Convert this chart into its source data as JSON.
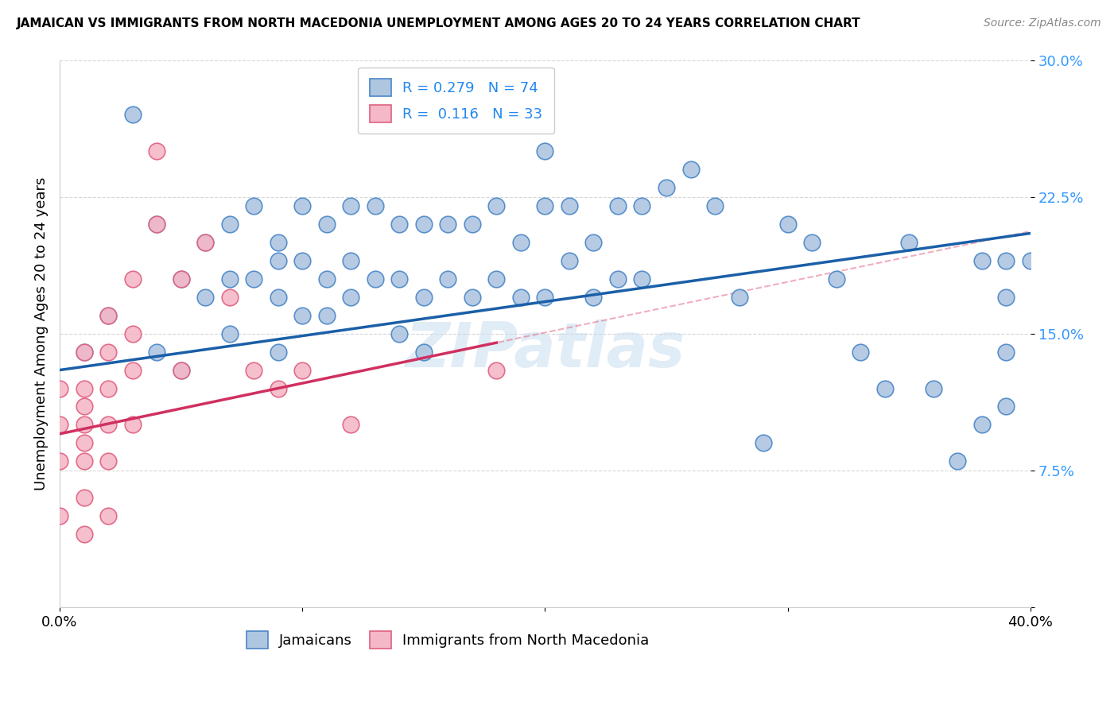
{
  "title": "JAMAICAN VS IMMIGRANTS FROM NORTH MACEDONIA UNEMPLOYMENT AMONG AGES 20 TO 24 YEARS CORRELATION CHART",
  "source": "Source: ZipAtlas.com",
  "ylabel": "Unemployment Among Ages 20 to 24 years",
  "xlim": [
    0.0,
    0.4
  ],
  "ylim": [
    0.0,
    0.3
  ],
  "xticks": [
    0.0,
    0.1,
    0.2,
    0.3,
    0.4
  ],
  "xticklabels": [
    "0.0%",
    "",
    "",
    "",
    "40.0%"
  ],
  "yticks": [
    0.0,
    0.075,
    0.15,
    0.225,
    0.3
  ],
  "yticklabels": [
    "",
    "7.5%",
    "15.0%",
    "22.5%",
    "30.0%"
  ],
  "blue_R": 0.279,
  "blue_N": 74,
  "pink_R": 0.116,
  "pink_N": 33,
  "blue_color": "#aec6e0",
  "blue_edge_color": "#4a86c8",
  "blue_line_color": "#1a5fa8",
  "pink_color": "#f4b8c8",
  "pink_edge_color": "#e06080",
  "pink_line_color": "#d03060",
  "blue_scatter_x": [
    0.01,
    0.02,
    0.03,
    0.04,
    0.04,
    0.05,
    0.05,
    0.06,
    0.06,
    0.07,
    0.07,
    0.07,
    0.08,
    0.08,
    0.09,
    0.09,
    0.09,
    0.09,
    0.1,
    0.1,
    0.1,
    0.11,
    0.11,
    0.11,
    0.12,
    0.12,
    0.12,
    0.13,
    0.13,
    0.14,
    0.14,
    0.14,
    0.15,
    0.15,
    0.15,
    0.16,
    0.16,
    0.17,
    0.17,
    0.18,
    0.18,
    0.19,
    0.19,
    0.2,
    0.2,
    0.2,
    0.21,
    0.21,
    0.22,
    0.22,
    0.23,
    0.23,
    0.24,
    0.24,
    0.25,
    0.26,
    0.27,
    0.28,
    0.29,
    0.3,
    0.31,
    0.32,
    0.33,
    0.34,
    0.35,
    0.36,
    0.37,
    0.38,
    0.38,
    0.39,
    0.39,
    0.39,
    0.39,
    0.4
  ],
  "blue_scatter_y": [
    0.14,
    0.16,
    0.27,
    0.21,
    0.14,
    0.18,
    0.13,
    0.2,
    0.17,
    0.21,
    0.18,
    0.15,
    0.22,
    0.18,
    0.2,
    0.19,
    0.17,
    0.14,
    0.22,
    0.19,
    0.16,
    0.21,
    0.18,
    0.16,
    0.22,
    0.19,
    0.17,
    0.22,
    0.18,
    0.21,
    0.18,
    0.15,
    0.21,
    0.17,
    0.14,
    0.21,
    0.18,
    0.21,
    0.17,
    0.22,
    0.18,
    0.2,
    0.17,
    0.25,
    0.22,
    0.17,
    0.22,
    0.19,
    0.2,
    0.17,
    0.22,
    0.18,
    0.22,
    0.18,
    0.23,
    0.24,
    0.22,
    0.17,
    0.09,
    0.21,
    0.2,
    0.18,
    0.14,
    0.12,
    0.2,
    0.12,
    0.08,
    0.1,
    0.19,
    0.19,
    0.17,
    0.14,
    0.11,
    0.19
  ],
  "pink_scatter_x": [
    0.0,
    0.0,
    0.0,
    0.0,
    0.01,
    0.01,
    0.01,
    0.01,
    0.01,
    0.01,
    0.01,
    0.01,
    0.02,
    0.02,
    0.02,
    0.02,
    0.02,
    0.02,
    0.03,
    0.03,
    0.03,
    0.03,
    0.04,
    0.04,
    0.05,
    0.05,
    0.06,
    0.07,
    0.08,
    0.09,
    0.1,
    0.12,
    0.18
  ],
  "pink_scatter_y": [
    0.12,
    0.1,
    0.08,
    0.05,
    0.14,
    0.12,
    0.11,
    0.1,
    0.09,
    0.08,
    0.06,
    0.04,
    0.16,
    0.14,
    0.12,
    0.1,
    0.08,
    0.05,
    0.18,
    0.15,
    0.13,
    0.1,
    0.21,
    0.25,
    0.18,
    0.13,
    0.2,
    0.17,
    0.13,
    0.12,
    0.13,
    0.1,
    0.13
  ]
}
